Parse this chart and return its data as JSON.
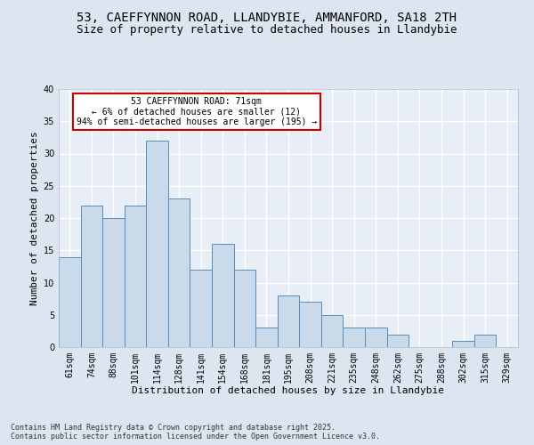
{
  "title_line1": "53, CAEFFYNNON ROAD, LLANDYBIE, AMMANFORD, SA18 2TH",
  "title_line2": "Size of property relative to detached houses in Llandybie",
  "xlabel": "Distribution of detached houses by size in Llandybie",
  "ylabel": "Number of detached properties",
  "categories": [
    "61sqm",
    "74sqm",
    "88sqm",
    "101sqm",
    "114sqm",
    "128sqm",
    "141sqm",
    "154sqm",
    "168sqm",
    "181sqm",
    "195sqm",
    "208sqm",
    "221sqm",
    "235sqm",
    "248sqm",
    "262sqm",
    "275sqm",
    "288sqm",
    "302sqm",
    "315sqm",
    "329sqm"
  ],
  "values": [
    14,
    22,
    20,
    22,
    32,
    23,
    12,
    16,
    12,
    3,
    8,
    7,
    5,
    3,
    3,
    2,
    0,
    0,
    1,
    2,
    0
  ],
  "bar_color": "#c9daea",
  "bar_edge_color": "#5b8db8",
  "annotation_text": "53 CAEFFYNNON ROAD: 71sqm\n← 6% of detached houses are smaller (12)\n94% of semi-detached houses are larger (195) →",
  "annotation_box_color": "#ffffff",
  "annotation_border_color": "#cc0000",
  "footer_line1": "Contains HM Land Registry data © Crown copyright and database right 2025.",
  "footer_line2": "Contains public sector information licensed under the Open Government Licence v3.0.",
  "ylim": [
    0,
    40
  ],
  "yticks": [
    0,
    5,
    10,
    15,
    20,
    25,
    30,
    35,
    40
  ],
  "background_color": "#dde6f0",
  "plot_bg_color": "#e8eef5",
  "grid_color": "#ffffff",
  "title_fontsize": 10,
  "subtitle_fontsize": 9,
  "label_fontsize": 8,
  "tick_fontsize": 7,
  "footer_fontsize": 6
}
